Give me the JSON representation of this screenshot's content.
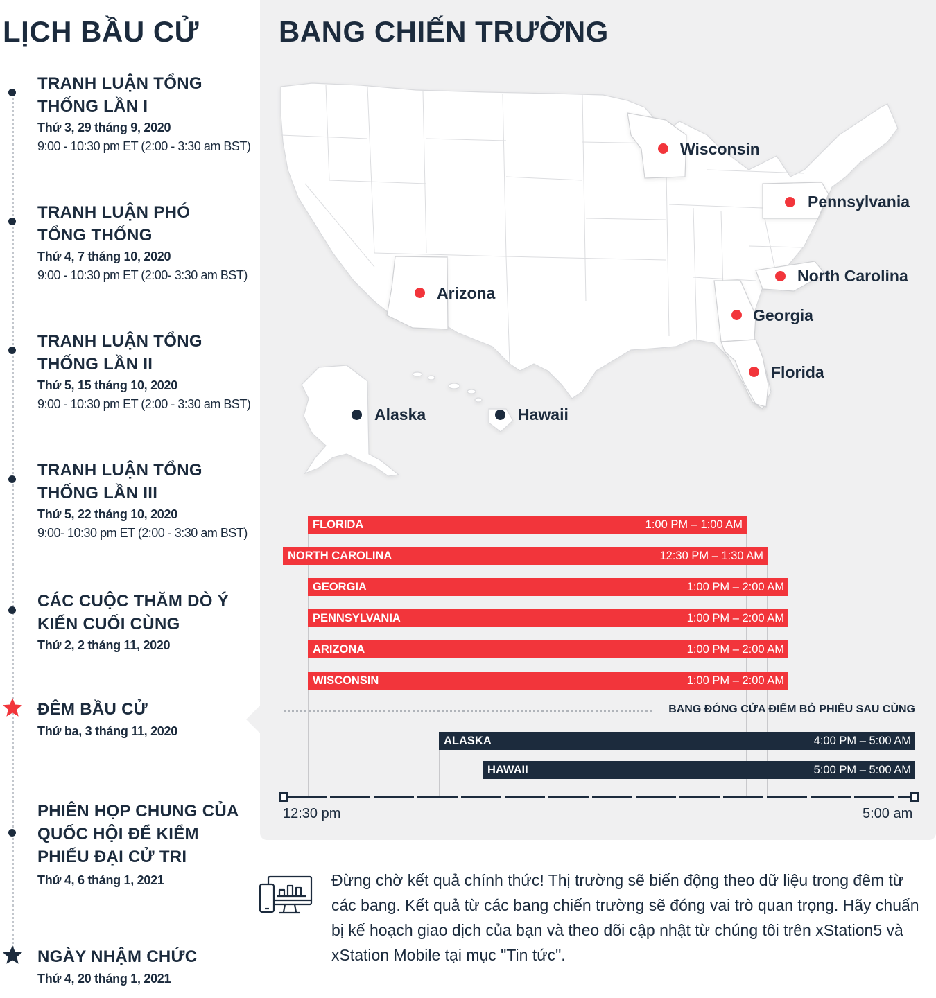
{
  "timeline": {
    "title": "LỊCH BẦU CỬ",
    "events": [
      {
        "title": "TRANH LUẬN TỔNG THỐNG LẦN I",
        "date": "Thứ 3, 29 tháng 9, 2020",
        "time": "9:00 - 10:30 pm ET (2:00 - 3:30 am BST)"
      },
      {
        "title": "TRANH LUẬN PHÓ TỔNG THỐNG",
        "date": "Thứ 4, 7 tháng 10, 2020",
        "time": "9:00 - 10:30 pm ET (2:00- 3:30 am BST)"
      },
      {
        "title": "TRANH LUẬN TỔNG THỐNG LẦN II",
        "date": "Thứ 5, 15 tháng 10, 2020",
        "time": "9:00 - 10:30 pm ET (2:00 - 3:30 am BST)"
      },
      {
        "title": "TRANH LUẬN TỔNG THỐNG LẦN III",
        "date": "Thứ 5, 22 tháng 10, 2020",
        "time": "9:00- 10:30 pm ET (2:00 - 3:30 am BST)"
      },
      {
        "title": "CÁC CUỘC THĂM DÒ Ý KIẾN CUỐI CÙNG",
        "date": "Thứ 2, 2 tháng 11, 2020"
      },
      {
        "title": "ĐÊM BẦU CỬ",
        "date": "Thứ ba, 3 tháng 11, 2020",
        "marker": "red-star"
      },
      {
        "title": "PHIÊN HỌP CHUNG CỦA QUỐC HỘI ĐỂ KIỂM PHIẾU ĐẠI CỬ TRI",
        "date": "Thứ 4, 6 tháng 1, 2021"
      },
      {
        "title": "NGÀY NHẬM CHỨC",
        "date": "Thứ 4, 20 tháng 1, 2021",
        "marker": "navy-star"
      }
    ]
  },
  "battleground": {
    "title": "BANG CHIẾN TRƯỜNG",
    "map_states": [
      {
        "name": "Wisconsin",
        "color": "red"
      },
      {
        "name": "Pennsylvania",
        "color": "red"
      },
      {
        "name": "North Carolina",
        "color": "red"
      },
      {
        "name": "Arizona",
        "color": "red"
      },
      {
        "name": "Georgia",
        "color": "red"
      },
      {
        "name": "Florida",
        "color": "red"
      },
      {
        "name": "Alaska",
        "color": "navy"
      },
      {
        "name": "Hawaii",
        "color": "navy"
      }
    ],
    "poll_closings": [
      {
        "state": "FLORIDA",
        "time": "1:00 PM – 1:00 AM",
        "color": "red"
      },
      {
        "state": "NORTH CAROLINA",
        "time": "12:30 PM – 1:30 AM",
        "color": "red"
      },
      {
        "state": "GEORGIA",
        "time": "1:00 PM – 2:00 AM",
        "color": "red"
      },
      {
        "state": "PENNSYLVANIA",
        "time": "1:00 PM – 2:00 AM",
        "color": "red"
      },
      {
        "state": "ARIZONA",
        "time": "1:00 PM – 2:00 AM",
        "color": "red"
      },
      {
        "state": "WISCONSIN",
        "time": "1:00 PM – 2:00 AM",
        "color": "red"
      },
      {
        "state": "ALASKA",
        "time": "4:00 PM – 5:00 AM",
        "color": "navy"
      },
      {
        "state": "HAWAII",
        "time": "5:00 PM – 5:00 AM",
        "color": "navy"
      }
    ],
    "last_closing_label": "BANG ĐÓNG CỬA ĐIỂM BỎ PHIẾU SAU CÙNG",
    "axis_start": "12:30 pm",
    "axis_end": "5:00 am"
  },
  "note": {
    "icon": "devices-chart-icon",
    "text": "Đừng chờ kết quả chính thức! Thị trường sẽ biến động theo dữ liệu trong đêm từ các bang. Kết quả từ các bang chiến trường sẽ đóng vai trò quan trọng. Hãy chuẩn bị kế hoạch giao dịch của bạn và theo dõi cập nhật từ chúng tôi trên xStation5 và xStation Mobile tại mục \"Tin tức\"."
  },
  "colors": {
    "red": "#f2353b",
    "navy": "#1c2b3d",
    "panel": "#f0f0f1"
  }
}
